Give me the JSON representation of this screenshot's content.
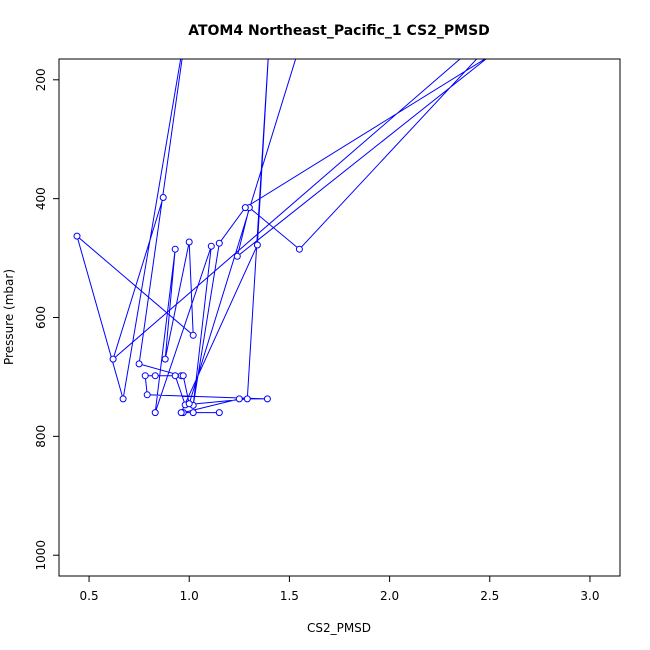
{
  "chart_data": {
    "type": "line",
    "title": "ATOM4 Northeast_Pacific_1 CS2_PMSD",
    "xlabel": "CS2_PMSD",
    "ylabel": "Pressure (mbar)",
    "xlim": [
      0.35,
      3.15
    ],
    "ylim": [
      1035,
      165
    ],
    "y_reversed": true,
    "x_ticks": [
      0.5,
      1.0,
      1.5,
      2.0,
      2.5,
      3.0
    ],
    "x_tick_labels": [
      "0.5",
      "1.0",
      "1.5",
      "2.0",
      "2.5",
      "3.0"
    ],
    "y_ticks": [
      200,
      400,
      600,
      800,
      1000
    ],
    "y_tick_labels": [
      "200",
      "400",
      "600",
      "800",
      "1000"
    ],
    "color": "#0000ff",
    "grid": false,
    "series": [
      {
        "name": "",
        "points": [
          {
            "x": 0.87,
            "y": 398,
            "marker": true
          },
          {
            "x": 0.62,
            "y": 670,
            "marker": true
          },
          {
            "x": 2.78,
            "y": 40,
            "marker": false
          },
          {
            "x": 1.55,
            "y": 485,
            "marker": true
          },
          {
            "x": 1.3,
            "y": 415,
            "marker": true
          },
          {
            "x": 1.24,
            "y": 497,
            "marker": true
          },
          {
            "x": 2.5,
            "y": 160,
            "marker": false
          },
          {
            "x": 1.28,
            "y": 415,
            "marker": true
          },
          {
            "x": 1.15,
            "y": 475,
            "marker": true
          },
          {
            "x": 1.02,
            "y": 748,
            "marker": true
          },
          {
            "x": 1.11,
            "y": 480,
            "marker": true
          },
          {
            "x": 0.83,
            "y": 760,
            "marker": true
          },
          {
            "x": 0.93,
            "y": 485,
            "marker": true
          },
          {
            "x": 0.88,
            "y": 670,
            "marker": true
          },
          {
            "x": 1.0,
            "y": 473,
            "marker": true
          },
          {
            "x": 1.02,
            "y": 630,
            "marker": true
          },
          {
            "x": 0.44,
            "y": 463,
            "marker": true
          },
          {
            "x": 0.67,
            "y": 737,
            "marker": true
          },
          {
            "x": 1.0,
            "y": 80,
            "marker": false
          },
          {
            "x": 0.75,
            "y": 678,
            "marker": true
          },
          {
            "x": 0.96,
            "y": 698,
            "marker": true
          },
          {
            "x": 0.83,
            "y": 698,
            "marker": true
          },
          {
            "x": 0.78,
            "y": 698,
            "marker": true
          },
          {
            "x": 0.79,
            "y": 730,
            "marker": true
          },
          {
            "x": 1.39,
            "y": 737,
            "marker": true
          },
          {
            "x": 1.25,
            "y": 737,
            "marker": true
          },
          {
            "x": 0.97,
            "y": 760,
            "marker": true
          },
          {
            "x": 1.15,
            "y": 760,
            "marker": true
          },
          {
            "x": 1.02,
            "y": 760,
            "marker": true
          },
          {
            "x": 0.96,
            "y": 760,
            "marker": true
          },
          {
            "x": 1.34,
            "y": 478,
            "marker": true
          },
          {
            "x": 1.4,
            "y": 130,
            "marker": false
          },
          {
            "x": 1.29,
            "y": 737,
            "marker": true
          },
          {
            "x": 0.98,
            "y": 747,
            "marker": true
          },
          {
            "x": 0.93,
            "y": 698,
            "marker": true
          },
          {
            "x": 0.97,
            "y": 698,
            "marker": true
          },
          {
            "x": 1.0,
            "y": 745,
            "marker": true
          },
          {
            "x": 1.6,
            "y": 90,
            "marker": false
          }
        ]
      }
    ]
  }
}
